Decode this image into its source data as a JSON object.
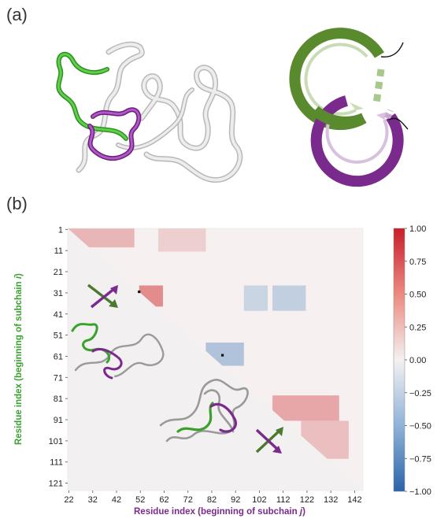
{
  "panels": {
    "a": "(a)",
    "b": "(b)"
  },
  "heatmap": {
    "x_title": {
      "prefix": "Residue index (beginning of subchain ",
      "var": "j",
      "suffix": ")"
    },
    "y_title": {
      "prefix": "Residue index (beginning of subchain ",
      "var": "i",
      "suffix": ")"
    }
  },
  "colors": {
    "green": "#4a7a2c",
    "green_light": "#3aa12e",
    "purple": "#7a2a8c",
    "neg": "#3a73b5",
    "pos": "#d6373a",
    "neutral": "#f2f0f0"
  },
  "chart_data": {
    "type": "heatmap",
    "title": "",
    "x_ticks": [
      22,
      32,
      42,
      52,
      62,
      72,
      82,
      92,
      102,
      112,
      122,
      132,
      142
    ],
    "y_ticks": [
      1,
      11,
      21,
      31,
      41,
      51,
      61,
      71,
      81,
      91,
      101,
      111,
      121
    ],
    "x_range": [
      22,
      146
    ],
    "y_range": [
      1,
      125
    ],
    "colorbar": {
      "range": [
        -1.0,
        1.0
      ],
      "ticks": [
        "1.00",
        "0.75",
        "0.50",
        "0.25",
        "0.00",
        "−0.25",
        "−0.50",
        "−0.75",
        "−1.00"
      ],
      "colormap": "RdBu"
    },
    "regions": [
      {
        "x": [
          52,
          62
        ],
        "y": [
          28,
          38
        ],
        "value": 0.6
      },
      {
        "x": [
          22,
          50
        ],
        "y": [
          1,
          10
        ],
        "value": 0.35
      },
      {
        "x": [
          108,
          136
        ],
        "y": [
          80,
          92
        ],
        "value": 0.45
      },
      {
        "x": [
          120,
          140
        ],
        "y": [
          92,
          110
        ],
        "value": 0.3
      },
      {
        "x": [
          80,
          96
        ],
        "y": [
          55,
          66
        ],
        "value": -0.4
      },
      {
        "x": [
          96,
          106
        ],
        "y": [
          28,
          40
        ],
        "value": -0.25
      },
      {
        "x": [
          108,
          122
        ],
        "y": [
          28,
          40
        ],
        "value": -0.3
      },
      {
        "x": [
          60,
          80
        ],
        "y": [
          1,
          12
        ],
        "value": 0.2
      }
    ],
    "markers": [
      {
        "x": 52,
        "y": 31
      },
      {
        "x": 87,
        "y": 61
      }
    ]
  }
}
